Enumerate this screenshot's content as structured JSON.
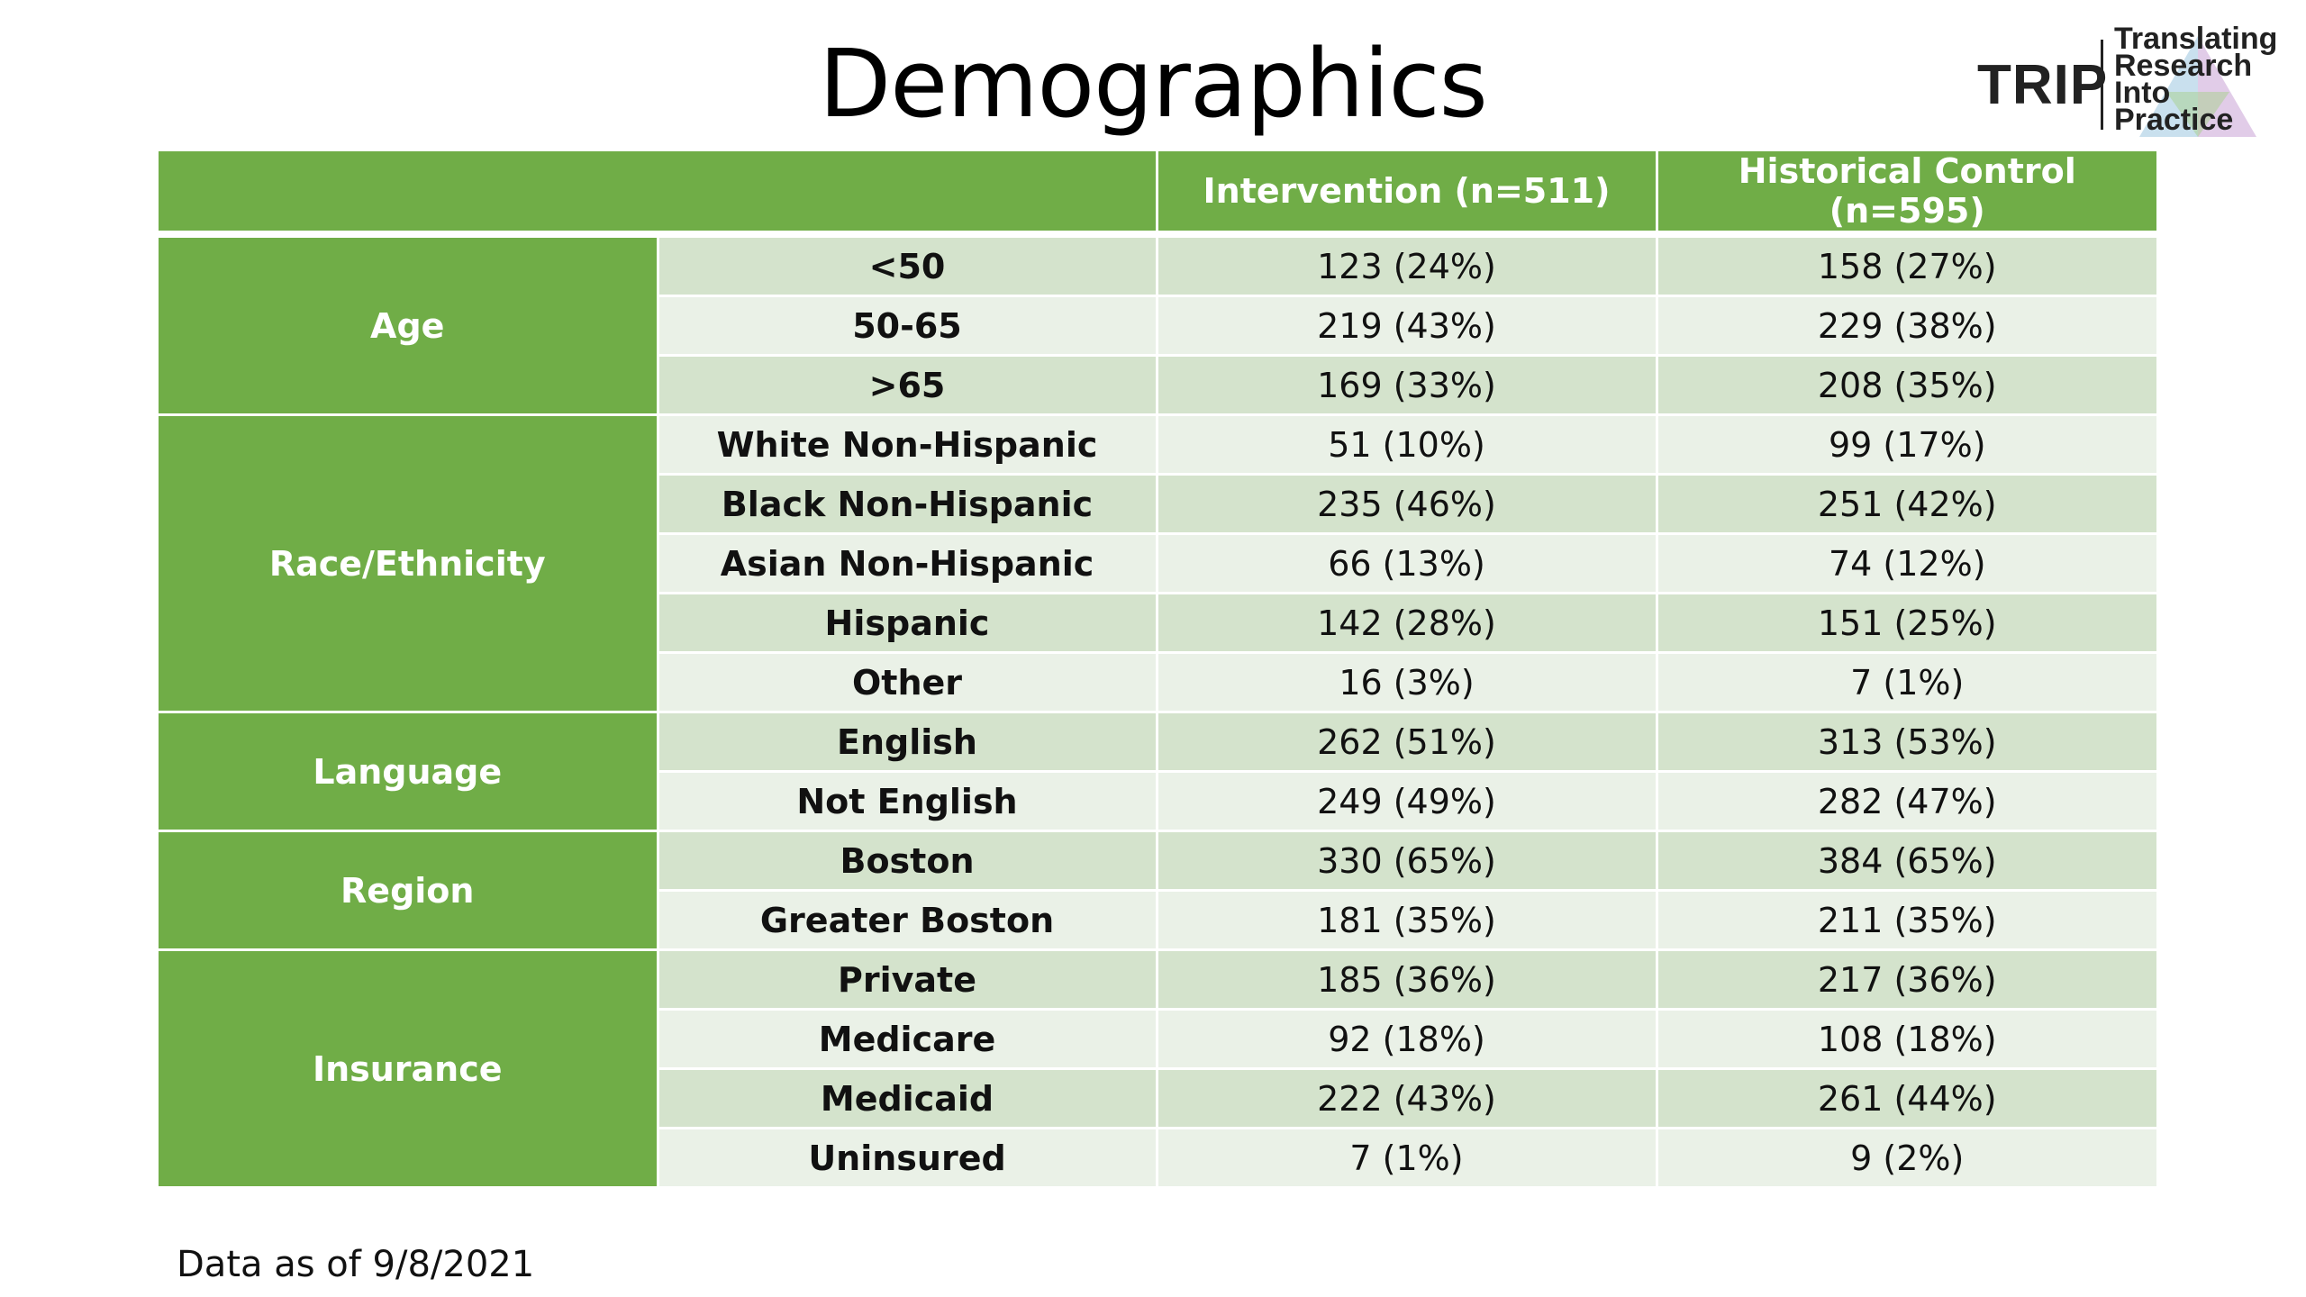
{
  "title": "Demographics",
  "logo": {
    "abbr": "TRIP",
    "lines": [
      "Translating",
      "Research",
      "Into",
      "Practice"
    ]
  },
  "colors": {
    "header_green": "#70ad47",
    "row_dark": "#d4e3cc",
    "row_light": "#eaf1e7"
  },
  "table": {
    "headers": [
      "",
      "Intervention (n=511)",
      "Historical Control (n=595)"
    ],
    "groups": [
      {
        "label": "Age",
        "rows": [
          {
            "label": "<50",
            "intervention": "123 (24%)",
            "control": "158 (27%)"
          },
          {
            "label": "50-65",
            "intervention": "219 (43%)",
            "control": "229 (38%)"
          },
          {
            "label": ">65",
            "intervention": "169 (33%)",
            "control": "208 (35%)"
          }
        ]
      },
      {
        "label": "Race/Ethnicity",
        "rows": [
          {
            "label": "White Non-Hispanic",
            "intervention": "51 (10%)",
            "control": "99 (17%)"
          },
          {
            "label": "Black Non-Hispanic",
            "intervention": "235 (46%)",
            "control": "251 (42%)"
          },
          {
            "label": "Asian Non-Hispanic",
            "intervention": "66 (13%)",
            "control": "74 (12%)"
          },
          {
            "label": "Hispanic",
            "intervention": "142 (28%)",
            "control": "151 (25%)"
          },
          {
            "label": "Other",
            "intervention": "16 (3%)",
            "control": "7 (1%)"
          }
        ]
      },
      {
        "label": "Language",
        "rows": [
          {
            "label": "English",
            "intervention": "262 (51%)",
            "control": "313 (53%)"
          },
          {
            "label": "Not English",
            "intervention": "249 (49%)",
            "control": "282 (47%)"
          }
        ]
      },
      {
        "label": "Region",
        "rows": [
          {
            "label": "Boston",
            "intervention": "330 (65%)",
            "control": "384 (65%)"
          },
          {
            "label": "Greater Boston",
            "intervention": "181 (35%)",
            "control": "211 (35%)"
          }
        ]
      },
      {
        "label": "Insurance",
        "rows": [
          {
            "label": "Private",
            "intervention": "185 (36%)",
            "control": "217 (36%)"
          },
          {
            "label": "Medicare",
            "intervention": "92 (18%)",
            "control": "108 (18%)"
          },
          {
            "label": "Medicaid",
            "intervention": "222 (43%)",
            "control": "261 (44%)"
          },
          {
            "label": "Uninsured",
            "intervention": "7 (1%)",
            "control": "9 (2%)"
          }
        ]
      }
    ]
  },
  "footnote": "Data as of 9/8/2021"
}
